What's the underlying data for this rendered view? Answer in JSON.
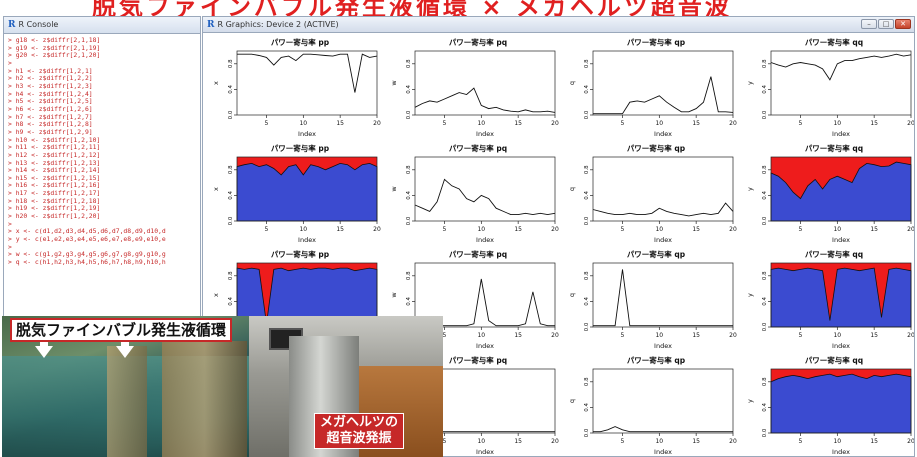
{
  "banner": {
    "text": "脱気ファインバブル発生液循環 × メガヘルツ超音波"
  },
  "console": {
    "title": "R Console",
    "logo": "R",
    "lines": [
      "> g18 <- z$diffr[2,1,18]",
      "> g19 <- z$diffr[2,1,19]",
      "> g20 <- z$diffr[2,1,20]",
      ">",
      "> h1 <- z$diffr[1,2,1]",
      "> h2 <- z$diffr[1,2,2]",
      "> h3 <- z$diffr[1,2,3]",
      "> h4 <- z$diffr[1,2,4]",
      "> h5 <- z$diffr[1,2,5]",
      "> h6 <- z$diffr[1,2,6]",
      "> h7 <- z$diffr[1,2,7]",
      "> h8 <- z$diffr[1,2,8]",
      "> h9 <- z$diffr[1,2,9]",
      "> h10 <- z$diffr[1,2,10]",
      "> h11 <- z$diffr[1,2,11]",
      "> h12 <- z$diffr[1,2,12]",
      "> h13 <- z$diffr[1,2,13]",
      "> h14 <- z$diffr[1,2,14]",
      "> h15 <- z$diffr[1,2,15]",
      "> h16 <- z$diffr[1,2,16]",
      "> h17 <- z$diffr[1,2,17]",
      "> h18 <- z$diffr[1,2,18]",
      "> h19 <- z$diffr[1,2,19]",
      "> h20 <- z$diffr[1,2,20]",
      ">",
      "> x <- c(d1,d2,d3,d4,d5,d6,d7,d8,d9,d10,d",
      "> y <- c(e1,e2,e3,e4,e5,e6,e7,e8,e9,e10,e",
      ">",
      "> w <- c(g1,g2,g3,g4,g5,g6,g7,g8,g9,g10,g",
      "> q <- c(h1,h2,h3,h4,h5,h6,h7,h8,h9,h10,h"
    ]
  },
  "graphics": {
    "title": "R Graphics: Device 2 (ACTIVE)",
    "logo": "R",
    "buttons": {
      "minimize": "–",
      "maximize": "□",
      "close": "✕"
    }
  },
  "captions": {
    "left": "脱気ファインバブル発生液循環",
    "right_line1": "メガヘルツの",
    "right_line2": "超音波発振"
  },
  "colors": {
    "area_red": "#ee1c1c",
    "area_blue": "#3b4bd0",
    "title_red": "#e02020",
    "console_text": "#c62828"
  },
  "chart_data": [
    {
      "type": "line",
      "title": "パワー寄与率 pp",
      "ylabel": "x",
      "xlabel": "Index",
      "xlim": [
        1,
        20
      ],
      "ylim": [
        0,
        1
      ],
      "yticks": [
        "0.0",
        "0.4",
        "0.8"
      ],
      "xticks": [
        "5",
        "10",
        "15",
        "20"
      ],
      "x": [
        1,
        2,
        3,
        4,
        5,
        6,
        7,
        8,
        9,
        10,
        11,
        12,
        13,
        14,
        15,
        16,
        17,
        18,
        19,
        20
      ],
      "values": [
        0.95,
        0.95,
        0.95,
        0.93,
        0.9,
        0.78,
        0.9,
        0.92,
        0.85,
        0.95,
        0.95,
        0.94,
        0.93,
        0.92,
        0.95,
        0.95,
        0.35,
        0.95,
        0.9,
        0.92
      ]
    },
    {
      "type": "line",
      "title": "パワー寄与率 pq",
      "ylabel": "w",
      "xlabel": "Index",
      "xlim": [
        1,
        20
      ],
      "ylim": [
        0,
        1
      ],
      "yticks": [
        "0.0",
        "0.4",
        "0.8"
      ],
      "xticks": [
        "5",
        "10",
        "15",
        "20"
      ],
      "x": [
        1,
        2,
        3,
        4,
        5,
        6,
        7,
        8,
        9,
        10,
        11,
        12,
        13,
        14,
        15,
        16,
        17,
        18,
        19,
        20
      ],
      "values": [
        0.12,
        0.18,
        0.22,
        0.2,
        0.25,
        0.3,
        0.35,
        0.32,
        0.42,
        0.15,
        0.1,
        0.12,
        0.08,
        0.06,
        0.05,
        0.08,
        0.05,
        0.05,
        0.06,
        0.04
      ]
    },
    {
      "type": "line",
      "title": "パワー寄与率 qp",
      "ylabel": "q",
      "xlabel": "Index",
      "xlim": [
        1,
        20
      ],
      "ylim": [
        0,
        1
      ],
      "yticks": [
        "0.0",
        "0.4",
        "0.8"
      ],
      "xticks": [
        "5",
        "10",
        "15",
        "20"
      ],
      "x": [
        1,
        2,
        3,
        4,
        5,
        6,
        7,
        8,
        9,
        10,
        11,
        12,
        13,
        14,
        15,
        16,
        17,
        18,
        19,
        20
      ],
      "values": [
        0.02,
        0.02,
        0.02,
        0.02,
        0.02,
        0.2,
        0.22,
        0.2,
        0.25,
        0.3,
        0.2,
        0.12,
        0.05,
        0.05,
        0.1,
        0.2,
        0.6,
        0.05,
        0.05,
        0.04
      ]
    },
    {
      "type": "line",
      "title": "パワー寄与率 qq",
      "ylabel": "y",
      "xlabel": "Index",
      "xlim": [
        1,
        20
      ],
      "ylim": [
        0,
        1
      ],
      "yticks": [
        "0.0",
        "0.4",
        "0.8"
      ],
      "xticks": [
        "5",
        "10",
        "15",
        "20"
      ],
      "x": [
        1,
        2,
        3,
        4,
        5,
        6,
        7,
        8,
        9,
        10,
        11,
        12,
        13,
        14,
        15,
        16,
        17,
        18,
        19,
        20
      ],
      "values": [
        0.82,
        0.78,
        0.75,
        0.8,
        0.82,
        0.8,
        0.78,
        0.72,
        0.55,
        0.8,
        0.85,
        0.85,
        0.88,
        0.9,
        0.92,
        0.9,
        0.92,
        0.95,
        0.92,
        0.94
      ]
    },
    {
      "type": "area",
      "title": "パワー寄与率 pp",
      "ylabel": "x",
      "xlabel": "Index",
      "xlim": [
        1,
        20
      ],
      "ylim": [
        0,
        1
      ],
      "yticks": [
        "0.0",
        "0.4",
        "0.8"
      ],
      "xticks": [
        "5",
        "10",
        "15",
        "20"
      ],
      "x": [
        1,
        2,
        3,
        4,
        5,
        6,
        7,
        8,
        9,
        10,
        11,
        12,
        13,
        14,
        15,
        16,
        17,
        18,
        19,
        20
      ],
      "values": [
        0.85,
        0.88,
        0.9,
        0.85,
        0.88,
        0.82,
        0.72,
        0.85,
        0.88,
        0.72,
        0.88,
        0.85,
        0.8,
        0.85,
        0.9,
        0.88,
        0.8,
        0.88,
        0.9,
        0.85
      ]
    },
    {
      "type": "line",
      "title": "パワー寄与率 pq",
      "ylabel": "w",
      "xlabel": "Index",
      "xlim": [
        1,
        20
      ],
      "ylim": [
        0,
        1
      ],
      "yticks": [
        "0.0",
        "0.4",
        "0.8"
      ],
      "xticks": [
        "5",
        "10",
        "15",
        "20"
      ],
      "x": [
        1,
        2,
        3,
        4,
        5,
        6,
        7,
        8,
        9,
        10,
        11,
        12,
        13,
        14,
        15,
        16,
        17,
        18,
        19,
        20
      ],
      "values": [
        0.25,
        0.2,
        0.15,
        0.3,
        0.65,
        0.55,
        0.5,
        0.35,
        0.3,
        0.4,
        0.35,
        0.2,
        0.15,
        0.1,
        0.1,
        0.12,
        0.1,
        0.12,
        0.1,
        0.12
      ]
    },
    {
      "type": "line",
      "title": "パワー寄与率 qp",
      "ylabel": "q",
      "xlabel": "Index",
      "xlim": [
        1,
        20
      ],
      "ylim": [
        0,
        1
      ],
      "yticks": [
        "0.0",
        "0.4",
        "0.8"
      ],
      "xticks": [
        "5",
        "10",
        "15",
        "20"
      ],
      "x": [
        1,
        2,
        3,
        4,
        5,
        6,
        7,
        8,
        9,
        10,
        11,
        12,
        13,
        14,
        15,
        16,
        17,
        18,
        19,
        20
      ],
      "values": [
        0.18,
        0.15,
        0.12,
        0.1,
        0.1,
        0.12,
        0.1,
        0.1,
        0.12,
        0.2,
        0.15,
        0.12,
        0.1,
        0.08,
        0.1,
        0.12,
        0.1,
        0.12,
        0.28,
        0.15
      ]
    },
    {
      "type": "area",
      "title": "パワー寄与率 qq",
      "ylabel": "y",
      "xlabel": "Index",
      "xlim": [
        1,
        20
      ],
      "ylim": [
        0,
        1
      ],
      "yticks": [
        "0.0",
        "0.4",
        "0.8"
      ],
      "xticks": [
        "5",
        "10",
        "15",
        "20"
      ],
      "x": [
        1,
        2,
        3,
        4,
        5,
        6,
        7,
        8,
        9,
        10,
        11,
        12,
        13,
        14,
        15,
        16,
        17,
        18,
        19,
        20
      ],
      "values": [
        0.75,
        0.7,
        0.6,
        0.45,
        0.35,
        0.55,
        0.65,
        0.5,
        0.65,
        0.7,
        0.65,
        0.6,
        0.82,
        0.9,
        0.88,
        0.85,
        0.86,
        0.92,
        0.9,
        0.88
      ]
    },
    {
      "type": "area",
      "title": "パワー寄与率 pp",
      "ylabel": "x",
      "xlabel": "Index",
      "xlim": [
        1,
        20
      ],
      "ylim": [
        0,
        1
      ],
      "yticks": [
        "0.0",
        "0.4",
        "0.8"
      ],
      "xticks": [
        "5",
        "10",
        "15",
        "20"
      ],
      "x": [
        1,
        2,
        3,
        4,
        5,
        6,
        7,
        8,
        9,
        10,
        11,
        12,
        13,
        14,
        15,
        16,
        17,
        18,
        19,
        20
      ],
      "values": [
        0.92,
        0.9,
        0.92,
        0.9,
        0.05,
        0.9,
        0.92,
        0.88,
        0.9,
        0.92,
        0.9,
        0.92,
        0.92,
        0.9,
        0.92,
        0.92,
        0.88,
        0.9,
        0.92,
        0.9
      ]
    },
    {
      "type": "line",
      "title": "パワー寄与率 pq",
      "ylabel": "w",
      "xlabel": "Index",
      "xlim": [
        1,
        20
      ],
      "ylim": [
        0,
        1
      ],
      "yticks": [
        "0.0",
        "0.4",
        "0.8"
      ],
      "xticks": [
        "5",
        "10",
        "15",
        "20"
      ],
      "x": [
        1,
        2,
        3,
        4,
        5,
        6,
        7,
        8,
        9,
        10,
        11,
        12,
        13,
        14,
        15,
        16,
        17,
        18,
        19,
        20
      ],
      "values": [
        0.02,
        0.02,
        0.02,
        0.02,
        0.02,
        0.02,
        0.02,
        0.02,
        0.05,
        0.75,
        0.1,
        0.02,
        0.02,
        0.02,
        0.02,
        0.05,
        0.55,
        0.05,
        0.02,
        0.02
      ]
    },
    {
      "type": "line",
      "title": "パワー寄与率 qp",
      "ylabel": "q",
      "xlabel": "Index",
      "xlim": [
        1,
        20
      ],
      "ylim": [
        0,
        1
      ],
      "yticks": [
        "0.0",
        "0.4",
        "0.8"
      ],
      "xticks": [
        "5",
        "10",
        "15",
        "20"
      ],
      "x": [
        1,
        2,
        3,
        4,
        5,
        6,
        7,
        8,
        9,
        10,
        11,
        12,
        13,
        14,
        15,
        16,
        17,
        18,
        19,
        20
      ],
      "values": [
        0.02,
        0.02,
        0.02,
        0.02,
        0.9,
        0.02,
        0.02,
        0.02,
        0.02,
        0.02,
        0.02,
        0.02,
        0.02,
        0.02,
        0.02,
        0.02,
        0.02,
        0.02,
        0.02,
        0.02
      ]
    },
    {
      "type": "area",
      "title": "パワー寄与率 qq",
      "ylabel": "y",
      "xlabel": "Index",
      "xlim": [
        1,
        20
      ],
      "ylim": [
        0,
        1
      ],
      "yticks": [
        "0.0",
        "0.4",
        "0.8"
      ],
      "xticks": [
        "5",
        "10",
        "15",
        "20"
      ],
      "x": [
        1,
        2,
        3,
        4,
        5,
        6,
        7,
        8,
        9,
        10,
        11,
        12,
        13,
        14,
        15,
        16,
        17,
        18,
        19,
        20
      ],
      "values": [
        0.9,
        0.92,
        0.9,
        0.88,
        0.9,
        0.92,
        0.9,
        0.88,
        0.1,
        0.9,
        0.92,
        0.9,
        0.88,
        0.9,
        0.92,
        0.15,
        0.9,
        0.92,
        0.9,
        0.88
      ]
    },
    {
      "type": "line",
      "title": "パワー寄与率 pp",
      "ylabel": "x",
      "xlabel": "Index",
      "xlim": [
        1,
        20
      ],
      "ylim": [
        0,
        1
      ],
      "yticks": [
        "0.0",
        "0.4",
        "0.8"
      ],
      "xticks": [
        "5",
        "10",
        "15",
        "20"
      ],
      "x": [
        1,
        2,
        3,
        4,
        5,
        6,
        7,
        8,
        9,
        10,
        11,
        12,
        13,
        14,
        15,
        16,
        17,
        18,
        19,
        20
      ],
      "values": [
        0.9,
        0.9,
        0.9,
        0.9,
        0.9,
        0.9,
        0.9,
        0.9,
        0.9,
        0.9,
        0.9,
        0.9,
        0.9,
        0.9,
        0.9,
        0.9,
        0.9,
        0.9,
        0.9,
        0.9
      ]
    },
    {
      "type": "line",
      "title": "パワー寄与率 pq",
      "ylabel": "w",
      "xlabel": "Index",
      "xlim": [
        1,
        20
      ],
      "ylim": [
        0,
        1
      ],
      "yticks": [
        "0.0",
        "0.4",
        "0.8"
      ],
      "xticks": [
        "5",
        "10",
        "15",
        "20"
      ],
      "x": [
        1,
        2,
        3,
        4,
        5,
        6,
        7,
        8,
        9,
        10,
        11,
        12,
        13,
        14,
        15,
        16,
        17,
        18,
        19,
        20
      ],
      "values": [
        0.02,
        0.02,
        0.02,
        0.02,
        0.02,
        0.02,
        0.02,
        0.02,
        0.02,
        0.02,
        0.02,
        0.02,
        0.02,
        0.02,
        0.02,
        0.02,
        0.02,
        0.02,
        0.02,
        0.02
      ]
    },
    {
      "type": "line",
      "title": "パワー寄与率 qp",
      "ylabel": "q",
      "xlabel": "Index",
      "xlim": [
        1,
        20
      ],
      "ylim": [
        0,
        1
      ],
      "yticks": [
        "0.0",
        "0.4",
        "0.8"
      ],
      "xticks": [
        "5",
        "10",
        "15",
        "20"
      ],
      "x": [
        1,
        2,
        3,
        4,
        5,
        6,
        7,
        8,
        9,
        10,
        11,
        12,
        13,
        14,
        15,
        16,
        17,
        18,
        19,
        20
      ],
      "values": [
        0.02,
        0.02,
        0.05,
        0.1,
        0.05,
        0.02,
        0.02,
        0.02,
        0.02,
        0.02,
        0.02,
        0.02,
        0.02,
        0.02,
        0.02,
        0.02,
        0.02,
        0.02,
        0.02,
        0.02
      ]
    },
    {
      "type": "area",
      "title": "パワー寄与率 qq",
      "ylabel": "y",
      "xlabel": "Index",
      "xlim": [
        1,
        20
      ],
      "ylim": [
        0,
        1
      ],
      "yticks": [
        "0.0",
        "0.4",
        "0.8"
      ],
      "xticks": [
        "5",
        "10",
        "15",
        "20"
      ],
      "x": [
        1,
        2,
        3,
        4,
        5,
        6,
        7,
        8,
        9,
        10,
        11,
        12,
        13,
        14,
        15,
        16,
        17,
        18,
        19,
        20
      ],
      "values": [
        0.8,
        0.85,
        0.88,
        0.9,
        0.88,
        0.85,
        0.88,
        0.9,
        0.92,
        0.88,
        0.9,
        0.92,
        0.88,
        0.85,
        0.9,
        0.88,
        0.9,
        0.92,
        0.9,
        0.88
      ]
    }
  ]
}
